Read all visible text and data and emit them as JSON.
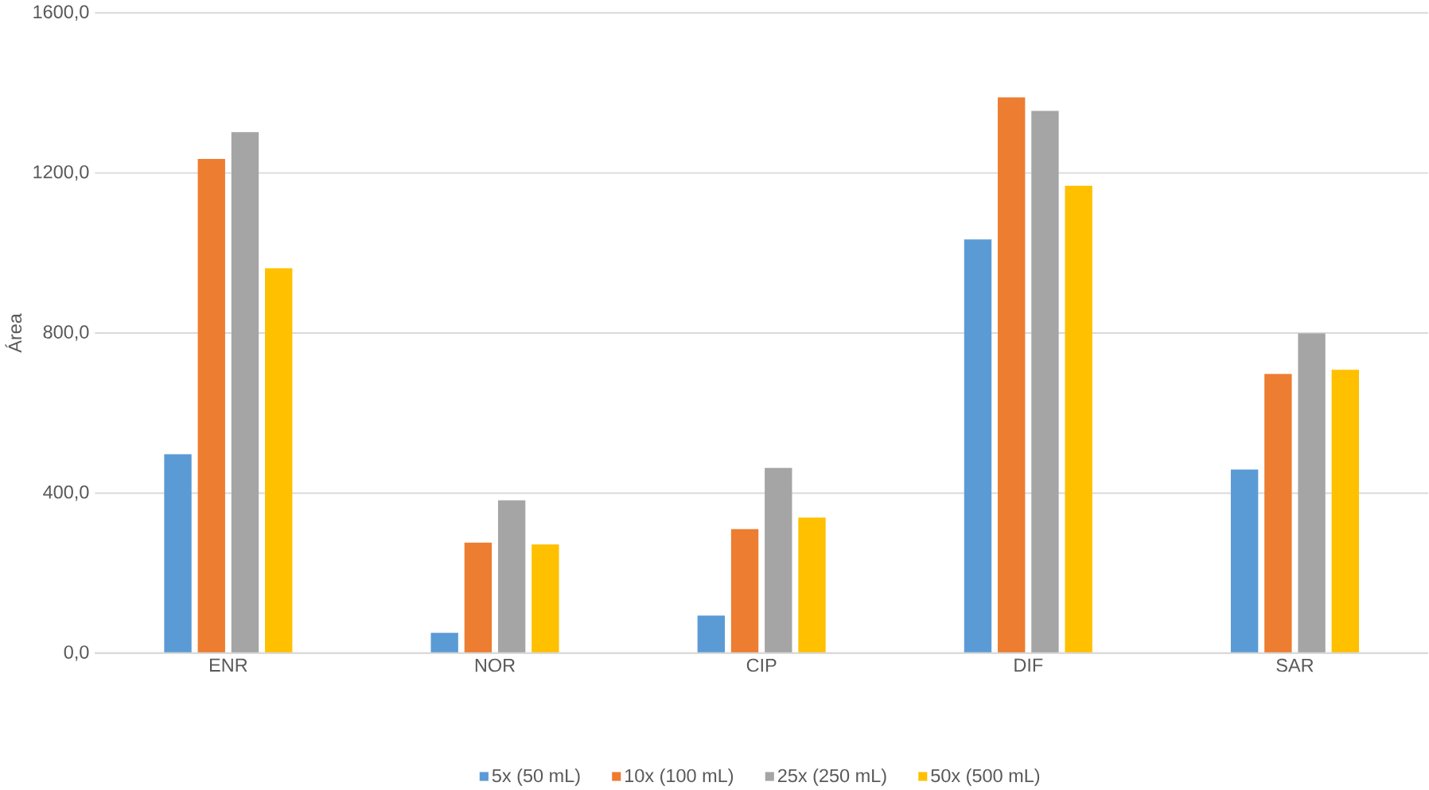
{
  "chart_data": {
    "type": "bar",
    "ylabel": "Área",
    "categories": [
      "ENR",
      "NOR",
      "CIP",
      "DIF",
      "SAR"
    ],
    "series": [
      {
        "name": "5x (50 mL)",
        "color": "#5b9bd5",
        "values": [
          497,
          51,
          94,
          1034,
          459
        ]
      },
      {
        "name": "10x (100 mL)",
        "color": "#ed7d31",
        "values": [
          1235,
          276,
          310,
          1389,
          698
        ]
      },
      {
        "name": "25x (250 mL)",
        "color": "#a5a5a5",
        "values": [
          1302,
          382,
          463,
          1355,
          799
        ]
      },
      {
        "name": "50x (500 mL)",
        "color": "#ffc000",
        "values": [
          962,
          272,
          339,
          1168,
          708
        ]
      }
    ],
    "ylim": [
      0,
      1600
    ],
    "yticks": [
      {
        "value": 0,
        "label": "0,0"
      },
      {
        "value": 400,
        "label": "400,0"
      },
      {
        "value": 800,
        "label": "800,0"
      },
      {
        "value": 1200,
        "label": "1200,0"
      },
      {
        "value": 1600,
        "label": "1600,0"
      }
    ],
    "grid": "y",
    "legend": "bottom"
  }
}
